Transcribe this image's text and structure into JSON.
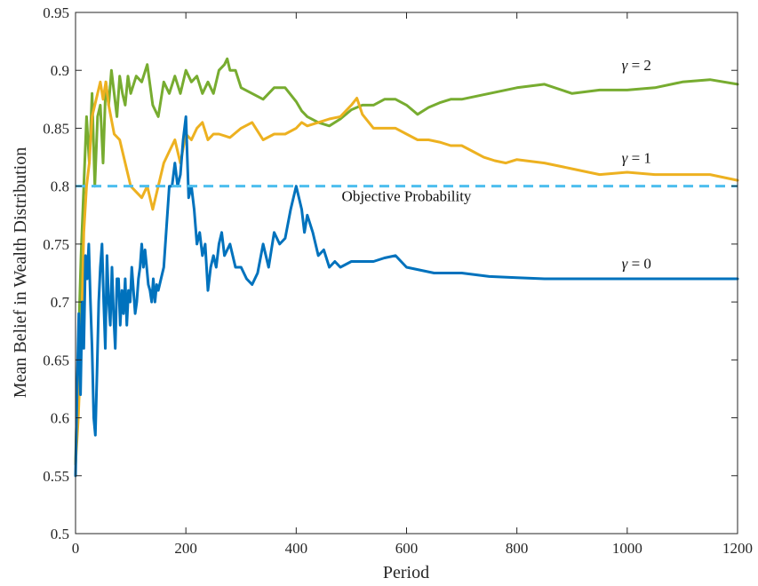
{
  "chart_data": {
    "type": "line",
    "title": "",
    "xlabel": "Period",
    "ylabel": "Mean Belief in Wealth Distribution",
    "xlim": [
      0,
      1200
    ],
    "ylim": [
      0.5,
      0.95
    ],
    "xticks": [
      0,
      200,
      400,
      600,
      800,
      1000,
      1200
    ],
    "yticks": [
      0.5,
      0.55,
      0.6,
      0.65,
      0.7,
      0.75,
      0.8,
      0.85,
      0.9,
      0.95
    ],
    "xtick_labels": [
      "0",
      "200",
      "400",
      "600",
      "800",
      "1000",
      "1200"
    ],
    "ytick_labels": [
      "0.5",
      "0.55",
      "0.6",
      "0.65",
      "0.7",
      "0.75",
      "0.8",
      "0.85",
      "0.9",
      "0.95"
    ],
    "grid": false,
    "reference_line": {
      "label": "Objective Probability",
      "y": 0.8,
      "color": "#4dbeee",
      "style": "dashed"
    },
    "series": [
      {
        "name": "γ = 2",
        "color": "#77ac30",
        "x": [
          0,
          5,
          10,
          15,
          20,
          25,
          30,
          35,
          40,
          45,
          50,
          55,
          60,
          65,
          70,
          75,
          80,
          85,
          90,
          95,
          100,
          110,
          120,
          130,
          140,
          150,
          160,
          170,
          180,
          190,
          200,
          210,
          220,
          230,
          240,
          250,
          260,
          270,
          275,
          280,
          290,
          300,
          320,
          340,
          360,
          380,
          400,
          410,
          420,
          440,
          460,
          480,
          500,
          520,
          540,
          560,
          580,
          600,
          620,
          640,
          660,
          680,
          700,
          750,
          800,
          850,
          900,
          950,
          1000,
          1050,
          1100,
          1150,
          1200
        ],
        "y": [
          0.56,
          0.66,
          0.74,
          0.8,
          0.86,
          0.82,
          0.88,
          0.8,
          0.86,
          0.87,
          0.82,
          0.89,
          0.87,
          0.9,
          0.88,
          0.86,
          0.895,
          0.88,
          0.87,
          0.895,
          0.88,
          0.895,
          0.89,
          0.905,
          0.87,
          0.86,
          0.89,
          0.88,
          0.895,
          0.88,
          0.9,
          0.89,
          0.895,
          0.88,
          0.89,
          0.88,
          0.9,
          0.905,
          0.91,
          0.9,
          0.9,
          0.885,
          0.88,
          0.875,
          0.885,
          0.885,
          0.873,
          0.865,
          0.86,
          0.855,
          0.852,
          0.858,
          0.866,
          0.87,
          0.87,
          0.875,
          0.875,
          0.87,
          0.862,
          0.868,
          0.872,
          0.875,
          0.875,
          0.88,
          0.885,
          0.888,
          0.88,
          0.883,
          0.883,
          0.885,
          0.89,
          0.892,
          0.888
        ]
      },
      {
        "name": "γ = 1",
        "color": "#edb120",
        "x": [
          0,
          5,
          10,
          15,
          20,
          25,
          30,
          35,
          40,
          45,
          50,
          55,
          60,
          70,
          80,
          90,
          100,
          110,
          120,
          130,
          140,
          150,
          160,
          170,
          180,
          190,
          200,
          210,
          220,
          230,
          240,
          250,
          260,
          280,
          300,
          320,
          340,
          360,
          380,
          400,
          410,
          420,
          440,
          460,
          480,
          500,
          510,
          520,
          540,
          560,
          580,
          600,
          620,
          640,
          660,
          680,
          700,
          720,
          740,
          760,
          780,
          800,
          850,
          900,
          950,
          1000,
          1050,
          1100,
          1150,
          1200
        ],
        "y": [
          0.56,
          0.6,
          0.66,
          0.76,
          0.8,
          0.82,
          0.86,
          0.87,
          0.88,
          0.89,
          0.875,
          0.89,
          0.87,
          0.845,
          0.84,
          0.82,
          0.8,
          0.795,
          0.79,
          0.8,
          0.78,
          0.8,
          0.82,
          0.83,
          0.84,
          0.82,
          0.845,
          0.84,
          0.85,
          0.855,
          0.84,
          0.845,
          0.845,
          0.842,
          0.85,
          0.855,
          0.84,
          0.845,
          0.845,
          0.85,
          0.855,
          0.852,
          0.855,
          0.858,
          0.86,
          0.87,
          0.876,
          0.862,
          0.85,
          0.85,
          0.85,
          0.845,
          0.84,
          0.84,
          0.838,
          0.835,
          0.835,
          0.83,
          0.825,
          0.822,
          0.82,
          0.823,
          0.82,
          0.815,
          0.81,
          0.812,
          0.81,
          0.81,
          0.81,
          0.805
        ]
      },
      {
        "name": "γ = 0",
        "color": "#0072bd",
        "x": [
          0,
          3,
          6,
          9,
          12,
          15,
          18,
          21,
          24,
          27,
          30,
          33,
          36,
          39,
          42,
          45,
          48,
          51,
          54,
          57,
          60,
          63,
          66,
          69,
          72,
          75,
          78,
          81,
          84,
          87,
          90,
          93,
          96,
          99,
          102,
          105,
          108,
          111,
          114,
          117,
          120,
          123,
          126,
          129,
          132,
          135,
          138,
          141,
          144,
          147,
          150,
          155,
          160,
          165,
          170,
          175,
          180,
          185,
          190,
          195,
          200,
          205,
          210,
          215,
          220,
          225,
          230,
          235,
          240,
          245,
          250,
          255,
          260,
          265,
          270,
          280,
          290,
          300,
          310,
          320,
          330,
          340,
          350,
          360,
          370,
          380,
          390,
          400,
          405,
          410,
          415,
          420,
          430,
          440,
          450,
          460,
          470,
          480,
          500,
          520,
          540,
          560,
          580,
          600,
          650,
          700,
          750,
          800,
          850,
          900,
          950,
          1000,
          1050,
          1100,
          1150,
          1200
        ],
        "y": [
          0.55,
          0.63,
          0.69,
          0.62,
          0.7,
          0.66,
          0.74,
          0.72,
          0.75,
          0.7,
          0.66,
          0.6,
          0.585,
          0.64,
          0.7,
          0.73,
          0.75,
          0.7,
          0.66,
          0.74,
          0.7,
          0.68,
          0.73,
          0.69,
          0.66,
          0.72,
          0.72,
          0.68,
          0.71,
          0.69,
          0.72,
          0.68,
          0.71,
          0.7,
          0.73,
          0.71,
          0.69,
          0.7,
          0.72,
          0.73,
          0.75,
          0.73,
          0.745,
          0.73,
          0.715,
          0.71,
          0.7,
          0.72,
          0.7,
          0.715,
          0.71,
          0.72,
          0.73,
          0.765,
          0.8,
          0.8,
          0.82,
          0.8,
          0.81,
          0.84,
          0.86,
          0.79,
          0.8,
          0.78,
          0.75,
          0.76,
          0.74,
          0.75,
          0.71,
          0.73,
          0.74,
          0.73,
          0.75,
          0.76,
          0.74,
          0.75,
          0.73,
          0.73,
          0.72,
          0.715,
          0.725,
          0.75,
          0.73,
          0.76,
          0.75,
          0.755,
          0.78,
          0.8,
          0.79,
          0.78,
          0.76,
          0.775,
          0.76,
          0.74,
          0.745,
          0.73,
          0.735,
          0.73,
          0.735,
          0.735,
          0.735,
          0.738,
          0.74,
          0.73,
          0.725,
          0.725,
          0.722,
          0.721,
          0.72,
          0.72,
          0.72,
          0.72,
          0.72,
          0.72,
          0.72,
          0.72
        ]
      }
    ],
    "annotations": [
      {
        "prefix": "γ",
        "suffix": " = 2",
        "x": 990,
        "y": 0.9
      },
      {
        "prefix": "γ",
        "suffix": " = 1",
        "x": 990,
        "y": 0.82
      },
      {
        "prefix": "γ",
        "suffix": " = 0",
        "x": 990,
        "y": 0.729
      },
      {
        "text": "Objective Probability",
        "x": 600,
        "y": 0.787
      }
    ]
  }
}
